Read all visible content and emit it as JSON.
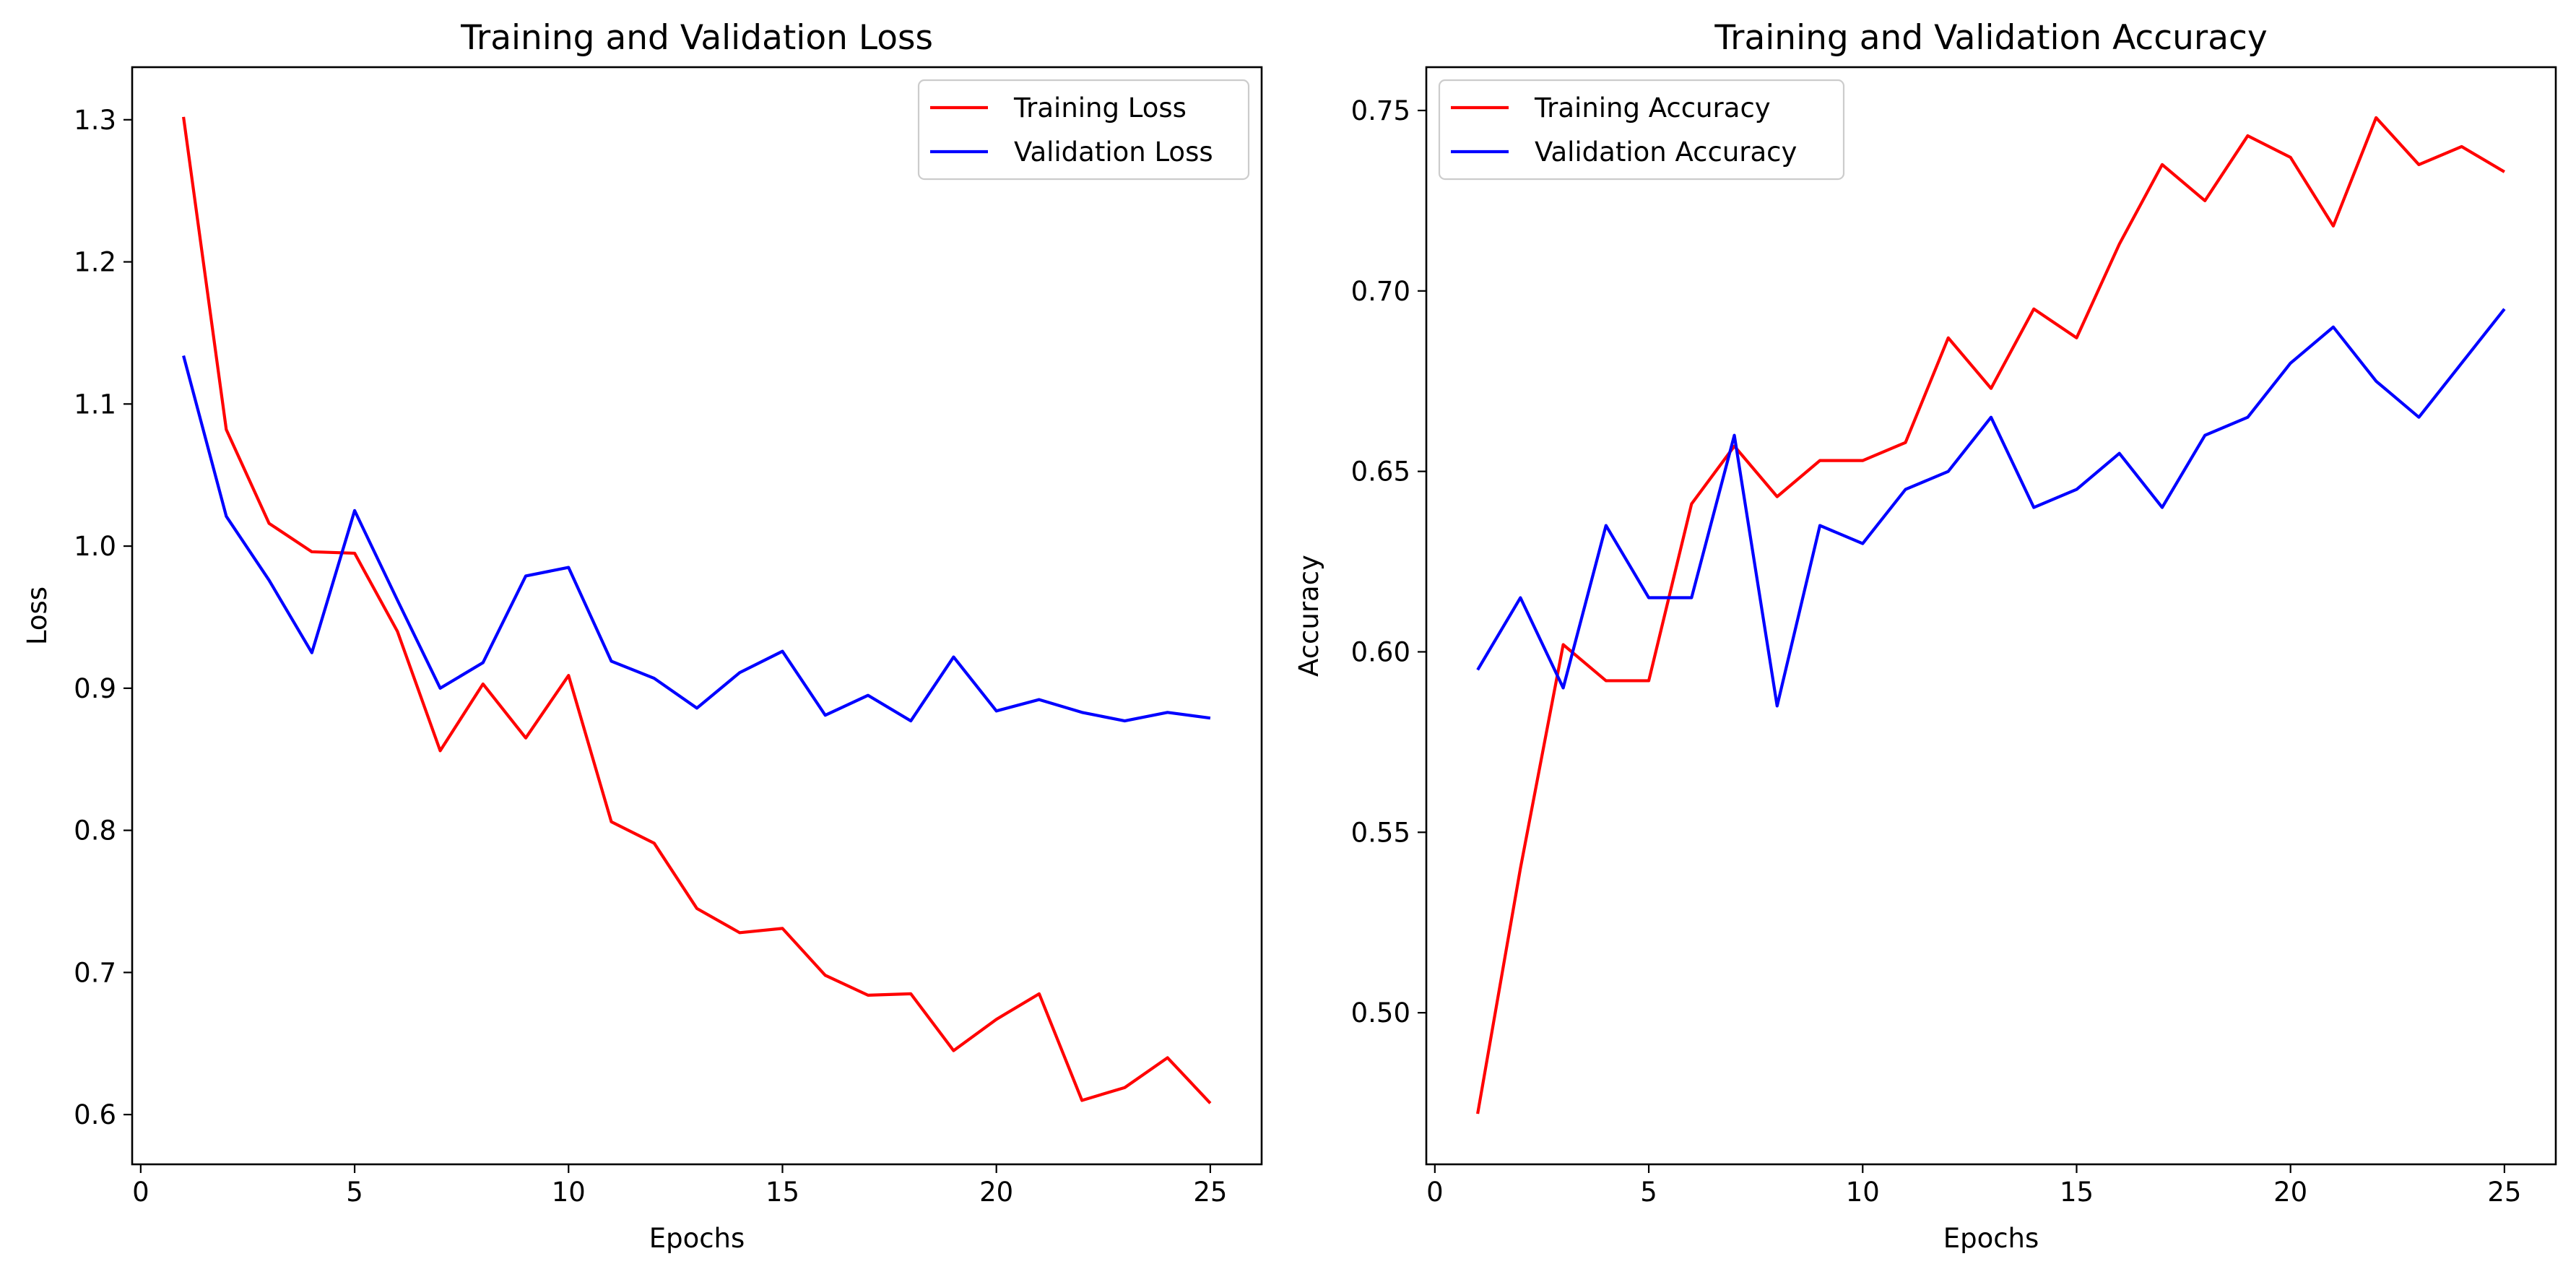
{
  "chart_data": [
    {
      "type": "line",
      "title": "Training and Validation Loss",
      "xlabel": "Epochs",
      "ylabel": "Loss",
      "xlim": [
        -0.2,
        26.2
      ],
      "ylim": [
        0.565,
        1.337
      ],
      "xticks": [
        0,
        5,
        10,
        15,
        20,
        25
      ],
      "xtick_labels": [
        "0",
        "5",
        "10",
        "15",
        "20",
        "25"
      ],
      "yticks": [
        0.6,
        0.7,
        0.8,
        0.9,
        1.0,
        1.1,
        1.2,
        1.3
      ],
      "ytick_labels": [
        "0.6",
        "0.7",
        "0.8",
        "0.9",
        "1.0",
        "1.1",
        "1.2",
        "1.3"
      ],
      "grid": false,
      "legend": "top-right",
      "x": [
        1,
        2,
        3,
        4,
        5,
        6,
        7,
        8,
        9,
        10,
        11,
        12,
        13,
        14,
        15,
        16,
        17,
        18,
        19,
        20,
        21,
        22,
        23,
        24,
        25
      ],
      "series": [
        {
          "name": "Training Loss",
          "color": "#ff0000",
          "values": [
            1.302,
            1.082,
            1.016,
            0.996,
            0.995,
            0.94,
            0.856,
            0.903,
            0.865,
            0.909,
            0.806,
            0.791,
            0.745,
            0.728,
            0.731,
            0.698,
            0.684,
            0.685,
            0.645,
            0.667,
            0.685,
            0.61,
            0.619,
            0.64,
            0.608
          ]
        },
        {
          "name": "Validation Loss",
          "color": "#0000ff",
          "values": [
            1.134,
            1.021,
            0.976,
            0.925,
            1.025,
            0.962,
            0.9,
            0.918,
            0.979,
            0.985,
            0.919,
            0.907,
            0.886,
            0.911,
            0.926,
            0.881,
            0.895,
            0.877,
            0.922,
            0.884,
            0.892,
            0.883,
            0.877,
            0.883,
            0.879
          ]
        }
      ]
    },
    {
      "type": "line",
      "title": "Training and Validation Accuracy",
      "xlabel": "Epochs",
      "ylabel": "Accuracy",
      "xlim": [
        -0.2,
        26.2
      ],
      "ylim": [
        0.458,
        0.762
      ],
      "xticks": [
        0,
        5,
        10,
        15,
        20,
        25
      ],
      "xtick_labels": [
        "0",
        "5",
        "10",
        "15",
        "20",
        "25"
      ],
      "yticks": [
        0.5,
        0.55,
        0.6,
        0.65,
        0.7,
        0.75
      ],
      "ytick_labels": [
        "0.50",
        "0.55",
        "0.60",
        "0.65",
        "0.70",
        "0.75"
      ],
      "grid": false,
      "legend": "top-left",
      "x": [
        1,
        2,
        3,
        4,
        5,
        6,
        7,
        8,
        9,
        10,
        11,
        12,
        13,
        14,
        15,
        16,
        17,
        18,
        19,
        20,
        21,
        22,
        23,
        24,
        25
      ],
      "series": [
        {
          "name": "Training Accuracy",
          "color": "#ff0000",
          "values": [
            0.472,
            0.54,
            0.602,
            0.592,
            0.592,
            0.641,
            0.657,
            0.643,
            0.653,
            0.653,
            0.658,
            0.687,
            0.673,
            0.695,
            0.687,
            0.713,
            0.735,
            0.725,
            0.743,
            0.737,
            0.718,
            0.748,
            0.735,
            0.74,
            0.733
          ]
        },
        {
          "name": "Validation Accuracy",
          "color": "#0000ff",
          "values": [
            0.595,
            0.615,
            0.59,
            0.635,
            0.615,
            0.615,
            0.66,
            0.585,
            0.635,
            0.63,
            0.645,
            0.65,
            0.665,
            0.64,
            0.645,
            0.655,
            0.64,
            0.66,
            0.665,
            0.68,
            0.69,
            0.675,
            0.665,
            0.68,
            0.695
          ]
        }
      ]
    }
  ]
}
